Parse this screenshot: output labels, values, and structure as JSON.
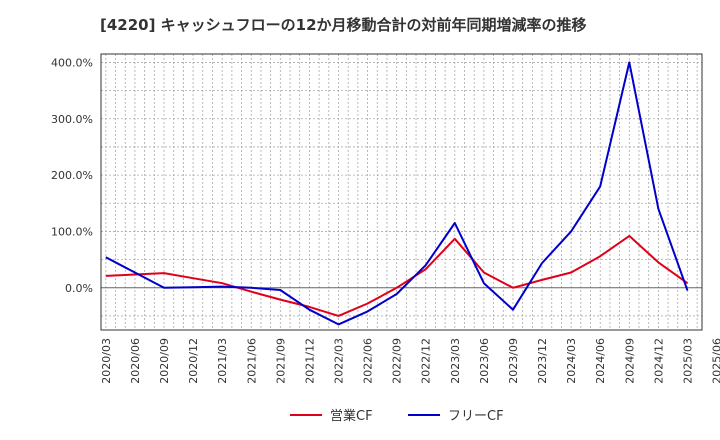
{
  "chart_data": {
    "type": "line",
    "title": "[4220]  キャッシュフローの12か月移動合計の対前年同期増減率の推移",
    "xlabel": "",
    "ylabel": "",
    "ylim": [
      -75,
      415
    ],
    "y_ticks": [
      400,
      300,
      200,
      100,
      0
    ],
    "y_tick_labels": [
      "400.0%",
      "300.0%",
      "200.0%",
      "100.0%",
      "0.0%"
    ],
    "x_tick_labels": [
      "2020/03",
      "2020/06",
      "2020/09",
      "2020/12",
      "2021/03",
      "2021/06",
      "2021/09",
      "2021/12",
      "2022/03",
      "2022/06",
      "2022/09",
      "2022/12",
      "2023/03",
      "2023/06",
      "2023/09",
      "2023/12",
      "2024/03",
      "2024/06",
      "2024/09",
      "2024/12",
      "2025/03",
      "2025/06"
    ],
    "x": [
      0,
      1,
      2,
      3,
      4,
      5,
      6,
      7,
      8,
      9,
      10,
      11,
      12,
      13,
      14,
      15,
      16,
      17,
      18,
      19,
      20,
      21,
      22,
      23,
      24,
      25,
      26,
      27,
      28,
      29,
      30,
      31,
      32,
      33,
      34,
      35,
      36,
      37,
      38,
      39,
      40,
      41,
      42,
      43,
      44,
      45,
      46,
      47,
      48,
      49,
      50,
      51,
      52,
      53,
      54,
      55,
      56,
      57,
      58,
      59,
      60,
      61
    ],
    "grid": true,
    "legend_position": "bottom",
    "series": [
      {
        "name": "営業CF",
        "color": "#e0001b",
        "values": [
          21,
          null,
          null,
          null,
          null,
          null,
          26,
          null,
          null,
          17,
          null,
          null,
          8,
          null,
          null,
          -7,
          null,
          null,
          -21,
          null,
          null,
          -34,
          null,
          null,
          -50,
          null,
          null,
          -28,
          null,
          null,
          0,
          null,
          null,
          33,
          null,
          null,
          87,
          null,
          null,
          27,
          null,
          null,
          0,
          null,
          null,
          14,
          null,
          null,
          27,
          null,
          null,
          56,
          null,
          null,
          92,
          null,
          null,
          45,
          null,
          null,
          8,
          null
        ]
      },
      {
        "name": "フリーCF",
        "color": "#0000cc",
        "values": [
          54,
          null,
          null,
          null,
          null,
          null,
          0,
          null,
          null,
          1,
          null,
          null,
          2,
          null,
          null,
          0,
          null,
          null,
          -4,
          null,
          null,
          -39,
          null,
          null,
          -65,
          null,
          null,
          -42,
          null,
          null,
          -11,
          null,
          null,
          40,
          null,
          null,
          115,
          null,
          null,
          8,
          null,
          null,
          -39,
          null,
          null,
          44,
          null,
          null,
          100,
          null,
          null,
          180,
          null,
          null,
          400,
          null,
          null,
          140,
          null,
          null,
          -5,
          null
        ]
      }
    ]
  },
  "legend": {
    "items": [
      "営業CF",
      "フリーCF"
    ]
  }
}
